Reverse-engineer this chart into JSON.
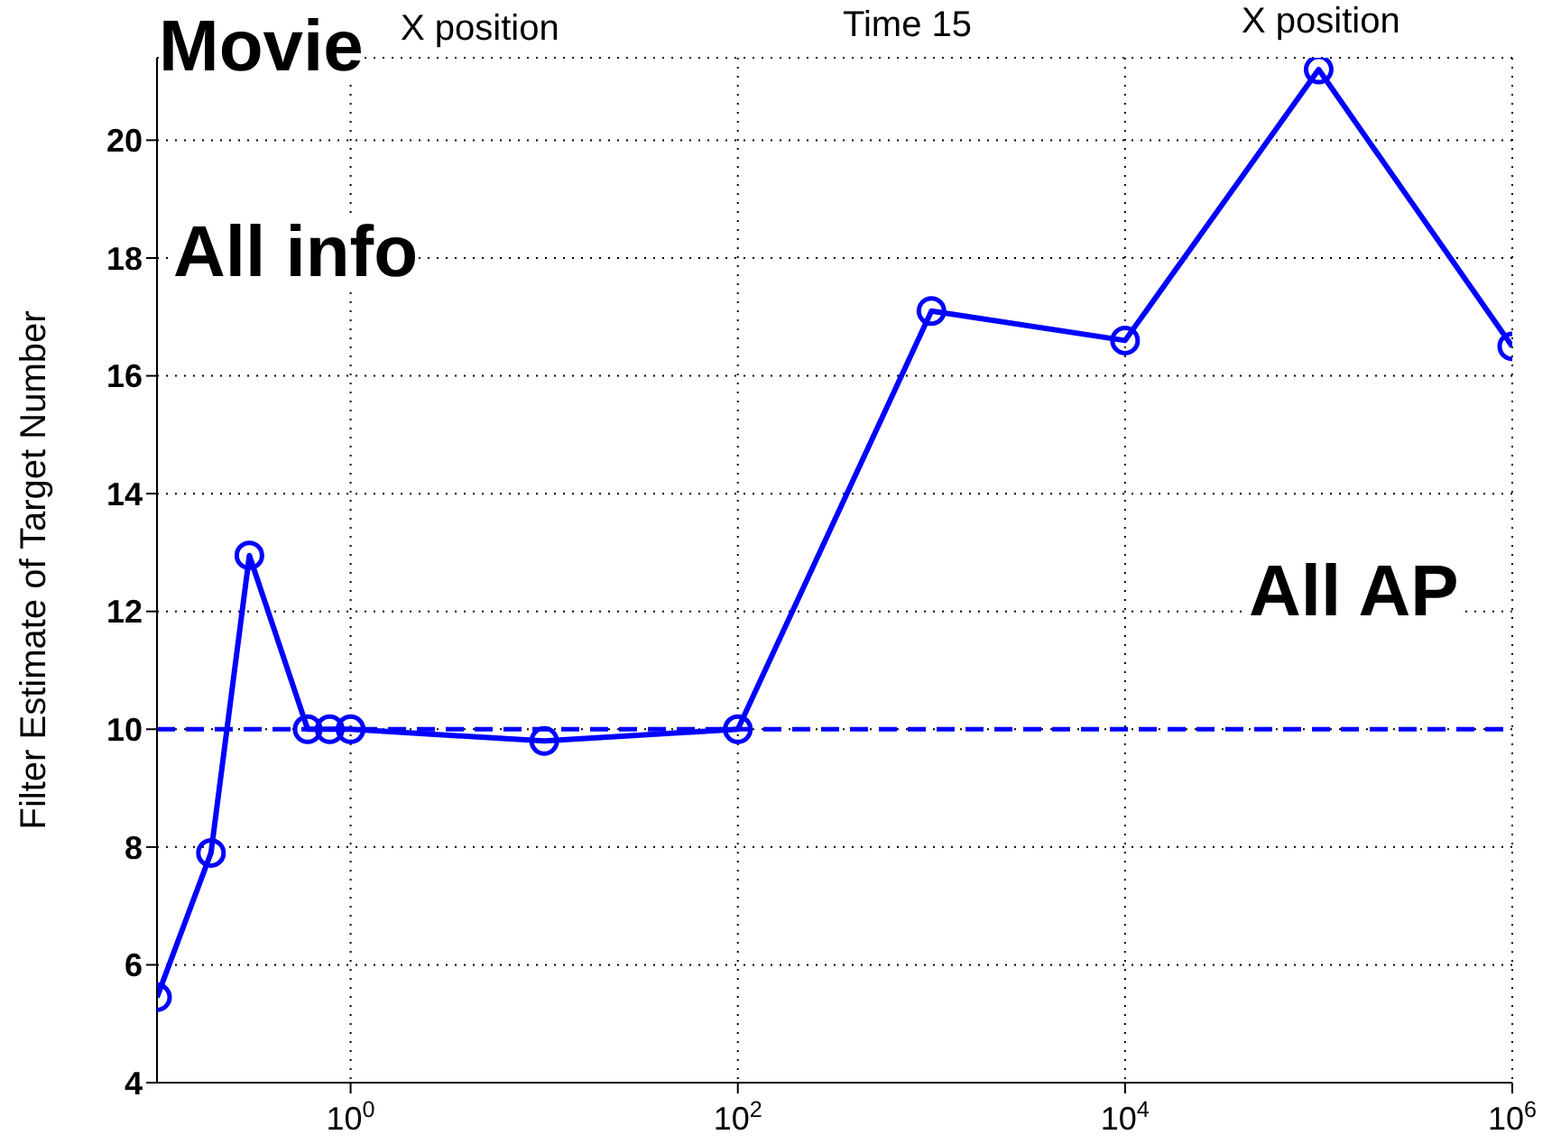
{
  "chart_data": {
    "type": "line",
    "ylabel": "Filter Estimate of Target Number",
    "x": [
      0.1,
      0.19,
      0.3,
      0.6,
      0.78,
      1,
      10,
      100,
      1000,
      10000,
      100000,
      1000000
    ],
    "series": [
      {
        "color": "#0000ff",
        "values": [
          5.45,
          7.9,
          12.95,
          10.0,
          10.0,
          10.0,
          9.8,
          10.0,
          17.1,
          16.6,
          21.2,
          16.5
        ]
      }
    ],
    "log": "x",
    "xlim": [
      0.1,
      1000000
    ],
    "xticks": [
      {
        "value": 1,
        "label": "10$^{0}$"
      },
      {
        "value": 100,
        "label": "10$^{2}$"
      },
      {
        "value": 10000,
        "label": "10$^{4}$"
      },
      {
        "value": 1000000,
        "label": "10$^{6}$"
      }
    ],
    "ylim": [
      4,
      21.4
    ],
    "yticks": [
      4,
      6,
      8,
      10,
      12,
      14,
      16,
      18,
      20
    ],
    "grid": true,
    "marker": "circle",
    "line_style": "solid",
    "ref_lines": [
      {
        "axis": "y",
        "value": 10,
        "color": "#0000ff",
        "line_style": "dashed"
      }
    ],
    "annotations": [
      "X position",
      "Time 15",
      "X position",
      "Movie",
      "All info",
      "All AP"
    ]
  }
}
